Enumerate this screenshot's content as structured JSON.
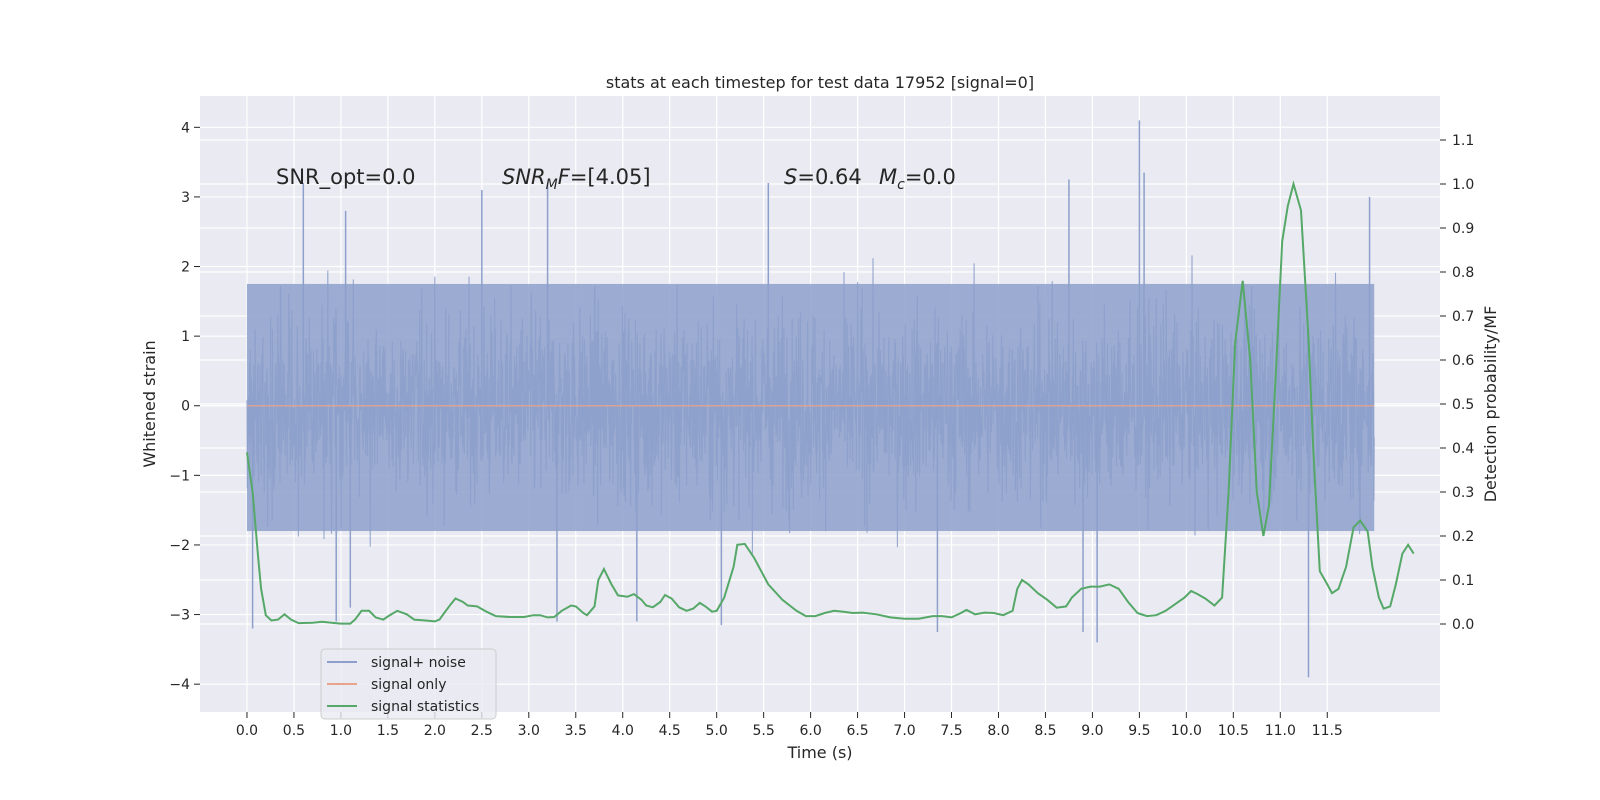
{
  "chart_data": {
    "type": "line",
    "title": "stats at each timestep for test data 17952 [signal=0]",
    "xlabel": "Time (s)",
    "ylabel": "Whitened strain",
    "y2label": "Detection probability/MF",
    "xlim": [
      -0.5,
      12.7
    ],
    "ylim": [
      -4.4,
      4.45
    ],
    "y2lim": [
      -0.2,
      1.2
    ],
    "x_ticks": [
      "0.0",
      "0.5",
      "1.0",
      "1.5",
      "2.0",
      "2.5",
      "3.0",
      "3.5",
      "4.0",
      "4.5",
      "5.0",
      "5.5",
      "6.0",
      "6.5",
      "7.0",
      "7.5",
      "8.0",
      "8.5",
      "9.0",
      "9.5",
      "10.0",
      "10.5",
      "11.0",
      "11.5"
    ],
    "y_ticks": [
      "4",
      "3",
      "2",
      "1",
      "0",
      "−1",
      "−2",
      "−3",
      "−4"
    ],
    "y2_ticks": [
      "1.1",
      "1.0",
      "0.9",
      "0.8",
      "0.7",
      "0.6",
      "0.5",
      "0.4",
      "0.3",
      "0.2",
      "0.1",
      "0.0"
    ],
    "annotations": {
      "snr_opt": "SNR_opt=0.0",
      "snr_mf_sym": "SNR",
      "snr_mf_sub": "M",
      "snr_mf_val": "F=[4.05]",
      "s_sym": "S",
      "s_val": "=0.64",
      "mc_sym": "M",
      "mc_sub": "c",
      "mc_val": "=0.0"
    },
    "series": [
      {
        "name": "signal+ noise",
        "color": "#8da0cb",
        "kind": "noise",
        "x_range": [
          0.0,
          12.0
        ],
        "core_range": [
          -1.8,
          1.75
        ],
        "extremes": {
          "max": 4.1,
          "min": -3.9
        },
        "spikes": [
          {
            "x": 0.06,
            "y": -3.2
          },
          {
            "x": 0.6,
            "y": 3.2
          },
          {
            "x": 0.95,
            "y": -3.1
          },
          {
            "x": 1.05,
            "y": 2.8
          },
          {
            "x": 1.1,
            "y": -2.9
          },
          {
            "x": 2.5,
            "y": 3.1
          },
          {
            "x": 3.2,
            "y": 3.2
          },
          {
            "x": 3.3,
            "y": -3.1
          },
          {
            "x": 4.15,
            "y": -3.1
          },
          {
            "x": 5.05,
            "y": -3.15
          },
          {
            "x": 5.55,
            "y": 3.2
          },
          {
            "x": 7.35,
            "y": -3.25
          },
          {
            "x": 8.75,
            "y": 3.25
          },
          {
            "x": 8.9,
            "y": -3.25
          },
          {
            "x": 9.05,
            "y": -3.4
          },
          {
            "x": 9.5,
            "y": 4.1
          },
          {
            "x": 9.55,
            "y": 3.35
          },
          {
            "x": 11.3,
            "y": -3.9
          },
          {
            "x": 11.95,
            "y": 3.0
          }
        ]
      },
      {
        "name": "signal only",
        "color": "#e8a48a",
        "kind": "line",
        "points": [
          [
            0.0,
            0.0
          ],
          [
            12.0,
            0.0
          ]
        ]
      },
      {
        "name": "signal statistics",
        "color": "#55a868",
        "kind": "line",
        "axis": "right",
        "points": [
          [
            0.0,
            0.39
          ],
          [
            0.06,
            0.3
          ],
          [
            0.12,
            0.15
          ],
          [
            0.15,
            0.08
          ],
          [
            0.2,
            0.02
          ],
          [
            0.26,
            0.008
          ],
          [
            0.33,
            0.01
          ],
          [
            0.4,
            0.022
          ],
          [
            0.47,
            0.01
          ],
          [
            0.55,
            0.002
          ],
          [
            0.7,
            0.003
          ],
          [
            0.8,
            0.005
          ],
          [
            0.9,
            0.003
          ],
          [
            1.0,
            0.001
          ],
          [
            1.1,
            0.001
          ],
          [
            1.15,
            0.01
          ],
          [
            1.22,
            0.03
          ],
          [
            1.3,
            0.03
          ],
          [
            1.37,
            0.015
          ],
          [
            1.45,
            0.01
          ],
          [
            1.52,
            0.02
          ],
          [
            1.6,
            0.03
          ],
          [
            1.7,
            0.022
          ],
          [
            1.78,
            0.01
          ],
          [
            1.9,
            0.008
          ],
          [
            2.0,
            0.006
          ],
          [
            2.05,
            0.01
          ],
          [
            2.1,
            0.025
          ],
          [
            2.17,
            0.045
          ],
          [
            2.22,
            0.058
          ],
          [
            2.3,
            0.05
          ],
          [
            2.35,
            0.042
          ],
          [
            2.45,
            0.04
          ],
          [
            2.55,
            0.028
          ],
          [
            2.65,
            0.018
          ],
          [
            2.8,
            0.016
          ],
          [
            2.95,
            0.016
          ],
          [
            3.05,
            0.02
          ],
          [
            3.12,
            0.02
          ],
          [
            3.2,
            0.015
          ],
          [
            3.27,
            0.016
          ],
          [
            3.35,
            0.03
          ],
          [
            3.45,
            0.042
          ],
          [
            3.5,
            0.04
          ],
          [
            3.58,
            0.025
          ],
          [
            3.62,
            0.02
          ],
          [
            3.7,
            0.04
          ],
          [
            3.74,
            0.1
          ],
          [
            3.8,
            0.125
          ],
          [
            3.88,
            0.09
          ],
          [
            3.95,
            0.065
          ],
          [
            4.05,
            0.062
          ],
          [
            4.12,
            0.068
          ],
          [
            4.2,
            0.055
          ],
          [
            4.25,
            0.042
          ],
          [
            4.32,
            0.038
          ],
          [
            4.4,
            0.05
          ],
          [
            4.45,
            0.066
          ],
          [
            4.52,
            0.058
          ],
          [
            4.6,
            0.038
          ],
          [
            4.68,
            0.03
          ],
          [
            4.75,
            0.035
          ],
          [
            4.82,
            0.048
          ],
          [
            4.88,
            0.04
          ],
          [
            4.95,
            0.028
          ],
          [
            5.0,
            0.03
          ],
          [
            5.08,
            0.06
          ],
          [
            5.18,
            0.13
          ],
          [
            5.22,
            0.18
          ],
          [
            5.3,
            0.182
          ],
          [
            5.4,
            0.15
          ],
          [
            5.55,
            0.09
          ],
          [
            5.7,
            0.055
          ],
          [
            5.85,
            0.03
          ],
          [
            5.95,
            0.018
          ],
          [
            6.05,
            0.018
          ],
          [
            6.15,
            0.025
          ],
          [
            6.25,
            0.03
          ],
          [
            6.35,
            0.028
          ],
          [
            6.45,
            0.025
          ],
          [
            6.55,
            0.026
          ],
          [
            6.7,
            0.022
          ],
          [
            6.85,
            0.015
          ],
          [
            7.0,
            0.012
          ],
          [
            7.15,
            0.012
          ],
          [
            7.3,
            0.018
          ],
          [
            7.4,
            0.018
          ],
          [
            7.5,
            0.015
          ],
          [
            7.6,
            0.025
          ],
          [
            7.66,
            0.032
          ],
          [
            7.75,
            0.022
          ],
          [
            7.85,
            0.026
          ],
          [
            7.95,
            0.025
          ],
          [
            8.05,
            0.02
          ],
          [
            8.15,
            0.03
          ],
          [
            8.2,
            0.08
          ],
          [
            8.25,
            0.1
          ],
          [
            8.32,
            0.09
          ],
          [
            8.42,
            0.07
          ],
          [
            8.52,
            0.055
          ],
          [
            8.62,
            0.037
          ],
          [
            8.72,
            0.04
          ],
          [
            8.78,
            0.06
          ],
          [
            8.88,
            0.08
          ],
          [
            8.98,
            0.085
          ],
          [
            9.08,
            0.085
          ],
          [
            9.18,
            0.09
          ],
          [
            9.28,
            0.08
          ],
          [
            9.38,
            0.05
          ],
          [
            9.48,
            0.025
          ],
          [
            9.58,
            0.018
          ],
          [
            9.68,
            0.02
          ],
          [
            9.78,
            0.03
          ],
          [
            9.88,
            0.045
          ],
          [
            9.98,
            0.06
          ],
          [
            10.05,
            0.075
          ],
          [
            10.12,
            0.068
          ],
          [
            10.2,
            0.058
          ],
          [
            10.3,
            0.042
          ],
          [
            10.38,
            0.06
          ],
          [
            10.45,
            0.3
          ],
          [
            10.52,
            0.64
          ],
          [
            10.6,
            0.78
          ],
          [
            10.68,
            0.6
          ],
          [
            10.75,
            0.3
          ],
          [
            10.82,
            0.2
          ],
          [
            10.88,
            0.27
          ],
          [
            10.96,
            0.6
          ],
          [
            11.02,
            0.87
          ],
          [
            11.08,
            0.95
          ],
          [
            11.14,
            1.0
          ],
          [
            11.22,
            0.94
          ],
          [
            11.3,
            0.65
          ],
          [
            11.35,
            0.4
          ],
          [
            11.42,
            0.12
          ],
          [
            11.5,
            0.09
          ],
          [
            11.55,
            0.07
          ],
          [
            11.62,
            0.08
          ],
          [
            11.7,
            0.13
          ],
          [
            11.78,
            0.22
          ],
          [
            11.85,
            0.235
          ],
          [
            11.93,
            0.21
          ],
          [
            11.98,
            0.13
          ],
          [
            12.05,
            0.06
          ],
          [
            12.1,
            0.035
          ],
          [
            12.17,
            0.04
          ],
          [
            12.23,
            0.09
          ],
          [
            12.3,
            0.16
          ],
          [
            12.36,
            0.18
          ],
          [
            12.42,
            0.16
          ]
        ]
      }
    ],
    "legend": [
      "signal+ noise",
      "signal only",
      "signal statistics"
    ]
  }
}
